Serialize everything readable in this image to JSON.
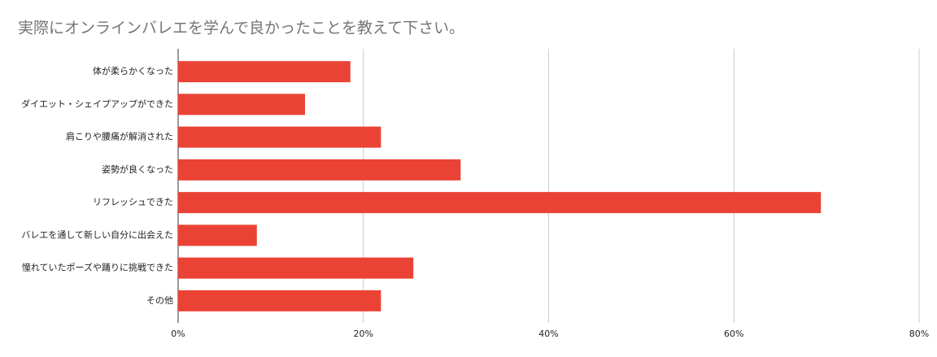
{
  "chart_data": {
    "type": "bar",
    "orientation": "horizontal",
    "title": "実際にオンラインバレエを学んで良かったことを教えて下さい。",
    "categories": [
      "体が柔らかくなった",
      "ダイエット・シェイプアップができた",
      "肩こりや腰痛が解消された",
      "姿勢が良くなった",
      "リフレッシュできた",
      "バレエを通して新しい自分に出会えた",
      "憧れていたポーズや踊りに挑戦できた",
      "その他"
    ],
    "values": [
      18.6,
      13.7,
      21.9,
      30.5,
      69.4,
      8.5,
      25.4,
      21.9
    ],
    "color": "#ea4335",
    "xlim": [
      0,
      80
    ],
    "xticks": [
      {
        "value": 0,
        "label": "0%"
      },
      {
        "value": 20,
        "label": "20%"
      },
      {
        "value": 40,
        "label": "40%"
      },
      {
        "value": 60,
        "label": "60%"
      },
      {
        "value": 80,
        "label": "80%"
      }
    ],
    "grid": true
  }
}
